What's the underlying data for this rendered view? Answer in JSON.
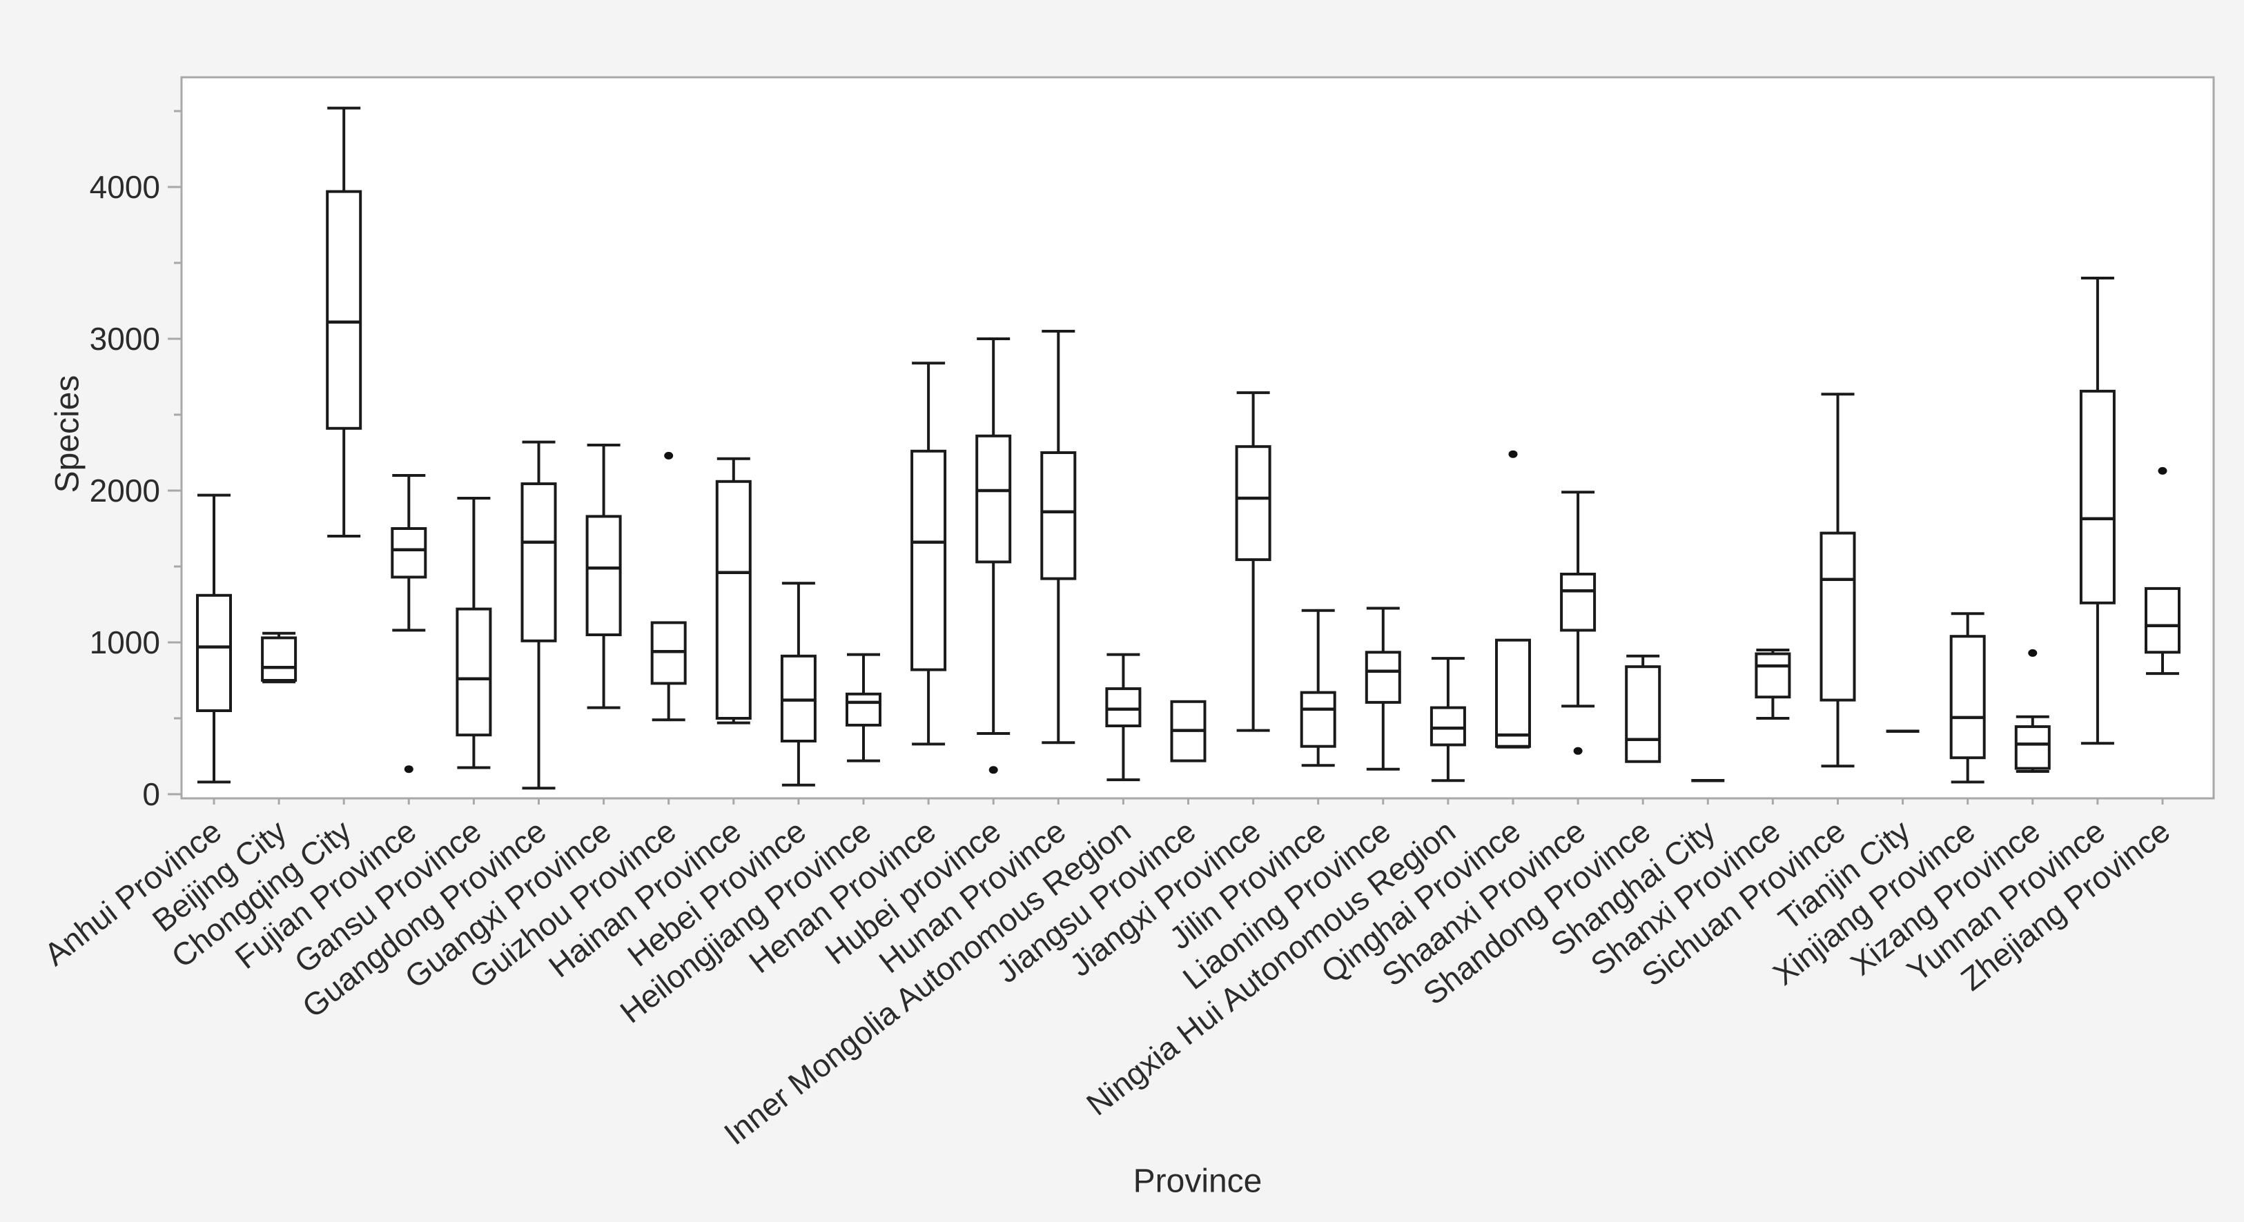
{
  "figure": {
    "ylabel": "Species",
    "xlabel": "Province"
  },
  "colors": {
    "page_background": "#f4f4f4",
    "plot_background": "#ffffff",
    "frame_stroke": "#a8a8a8",
    "box_stroke": "#1a1a1a",
    "outlier_fill": "#111111",
    "text": "#2b2b2b"
  },
  "chart_data": {
    "type": "box",
    "title": "",
    "xlabel": "Province",
    "ylabel": "Species",
    "ylim": [
      0,
      4600
    ],
    "grid": false,
    "legend": false,
    "y_ticks": [
      0,
      1000,
      2000,
      3000,
      4000
    ],
    "y_minor_ticks": [
      500,
      1500,
      2500,
      3500,
      4500
    ],
    "categories": [
      "Anhui Province",
      "Beijing City",
      "Chongqing City",
      "Fujian Province",
      "Gansu Province",
      "Guangdong Province",
      "Guangxi Province",
      "Guizhou Province",
      "Hainan Province",
      "Hebei Province",
      "Heilongjiang Province",
      "Henan Province",
      "Hubei province",
      "Hunan Province",
      "Inner Mongolia Autonomous Region",
      "Jiangsu Province",
      "Jiangxi Province",
      "Jilin Province",
      "Liaoning Province",
      "Ningxia Hui Autonomous Region",
      "Qinghai Province",
      "Shaanxi Province",
      "Shandong Province",
      "Shanghai City",
      "Shanxi Province",
      "Sichuan Province",
      "Tianjin City",
      "Xinjiang Province",
      "Xizang Province",
      "Yunnan Province",
      "Zhejiang Province"
    ],
    "boxes": [
      {
        "label": "Anhui Province",
        "min": 80,
        "q1": 550,
        "median": 970,
        "q3": 1310,
        "max": 1970,
        "outliers": []
      },
      {
        "label": "Beijing City",
        "min": 740,
        "q1": 750,
        "median": 835,
        "q3": 1030,
        "max": 1060,
        "outliers": []
      },
      {
        "label": "Chongqing City",
        "min": 1700,
        "q1": 2410,
        "median": 3110,
        "q3": 3970,
        "max": 4520,
        "outliers": []
      },
      {
        "label": "Fujian Province",
        "min": 1080,
        "q1": 1430,
        "median": 1610,
        "q3": 1750,
        "max": 2100,
        "outliers": [
          165
        ]
      },
      {
        "label": "Gansu Province",
        "min": 175,
        "q1": 390,
        "median": 760,
        "q3": 1220,
        "max": 1950,
        "outliers": []
      },
      {
        "label": "Guangdong Province",
        "min": 40,
        "q1": 1010,
        "median": 1660,
        "q3": 2045,
        "max": 2320,
        "outliers": []
      },
      {
        "label": "Guangxi Province",
        "min": 570,
        "q1": 1050,
        "median": 1490,
        "q3": 1830,
        "max": 2300,
        "outliers": []
      },
      {
        "label": "Guizhou Province",
        "min": 490,
        "q1": 730,
        "median": 940,
        "q3": 1130,
        "max": 1130,
        "outliers": [
          2230
        ]
      },
      {
        "label": "Hainan Province",
        "min": 470,
        "q1": 500,
        "median": 1460,
        "q3": 2060,
        "max": 2210,
        "outliers": []
      },
      {
        "label": "Hebei Province",
        "min": 60,
        "q1": 350,
        "median": 620,
        "q3": 910,
        "max": 1390,
        "outliers": []
      },
      {
        "label": "Heilongjiang Province",
        "min": 220,
        "q1": 455,
        "median": 605,
        "q3": 660,
        "max": 920,
        "outliers": []
      },
      {
        "label": "Henan Province",
        "min": 330,
        "q1": 820,
        "median": 1660,
        "q3": 2260,
        "max": 2840,
        "outliers": []
      },
      {
        "label": "Hubei province",
        "min": 400,
        "q1": 1530,
        "median": 2000,
        "q3": 2360,
        "max": 3000,
        "outliers": [
          160
        ]
      },
      {
        "label": "Hunan Province",
        "min": 340,
        "q1": 1420,
        "median": 1860,
        "q3": 2250,
        "max": 3050,
        "outliers": []
      },
      {
        "label": "Inner Mongolia Autonomous Region",
        "min": 95,
        "q1": 450,
        "median": 560,
        "q3": 695,
        "max": 920,
        "outliers": []
      },
      {
        "label": "Jiangsu Province",
        "min": 220,
        "q1": 220,
        "median": 420,
        "q3": 610,
        "max": 610,
        "outliers": []
      },
      {
        "label": "Jiangxi Province",
        "min": 420,
        "q1": 1545,
        "median": 1950,
        "q3": 2290,
        "max": 2645,
        "outliers": []
      },
      {
        "label": "Jilin Province",
        "min": 190,
        "q1": 315,
        "median": 560,
        "q3": 670,
        "max": 1210,
        "outliers": []
      },
      {
        "label": "Liaoning Province",
        "min": 165,
        "q1": 605,
        "median": 810,
        "q3": 935,
        "max": 1225,
        "outliers": []
      },
      {
        "label": "Ningxia Hui Autonomous Region",
        "min": 90,
        "q1": 325,
        "median": 435,
        "q3": 570,
        "max": 895,
        "outliers": []
      },
      {
        "label": "Qinghai Province",
        "min": 310,
        "q1": 315,
        "median": 390,
        "q3": 1015,
        "max": 1015,
        "outliers": [
          2240
        ]
      },
      {
        "label": "Shaanxi Province",
        "min": 580,
        "q1": 1080,
        "median": 1340,
        "q3": 1450,
        "max": 1990,
        "outliers": [
          285
        ]
      },
      {
        "label": "Shandong Province",
        "min": 215,
        "q1": 215,
        "median": 360,
        "q3": 840,
        "max": 910,
        "outliers": []
      },
      {
        "label": "Shanghai City",
        "min": 90,
        "q1": 90,
        "median": 90,
        "q3": 90,
        "max": 90,
        "outliers": []
      },
      {
        "label": "Shanxi Province",
        "min": 500,
        "q1": 640,
        "median": 845,
        "q3": 925,
        "max": 950,
        "outliers": []
      },
      {
        "label": "Sichuan Province",
        "min": 185,
        "q1": 620,
        "median": 1415,
        "q3": 1720,
        "max": 2635,
        "outliers": []
      },
      {
        "label": "Tianjin City",
        "min": 415,
        "q1": 415,
        "median": 415,
        "q3": 415,
        "max": 415,
        "outliers": []
      },
      {
        "label": "Xinjiang Province",
        "min": 80,
        "q1": 240,
        "median": 505,
        "q3": 1040,
        "max": 1190,
        "outliers": []
      },
      {
        "label": "Xizang Province",
        "min": 150,
        "q1": 170,
        "median": 330,
        "q3": 445,
        "max": 510,
        "outliers": [
          930
        ]
      },
      {
        "label": "Yunnan Province",
        "min": 335,
        "q1": 1260,
        "median": 1815,
        "q3": 2655,
        "max": 3400,
        "outliers": []
      },
      {
        "label": "Zhejiang Province",
        "min": 795,
        "q1": 935,
        "median": 1110,
        "q3": 1355,
        "max": 1355,
        "outliers": [
          2130
        ]
      }
    ]
  }
}
